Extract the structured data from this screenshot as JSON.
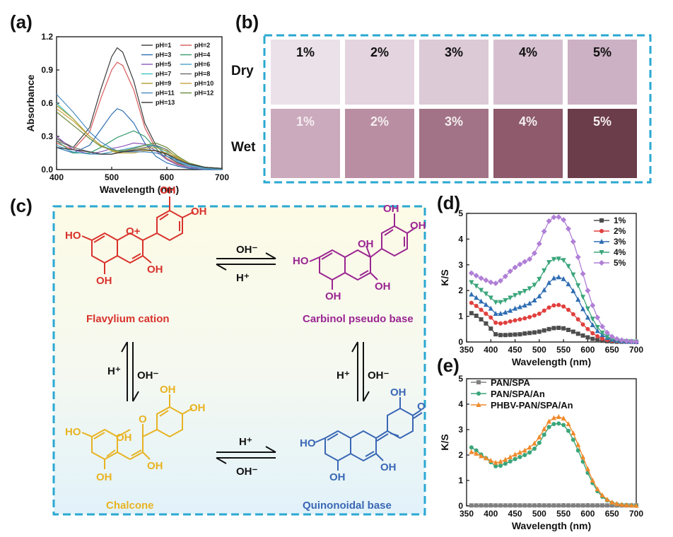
{
  "panel_labels": [
    "(a)",
    "(b)",
    "(c)",
    "(d)",
    "(e)"
  ],
  "chart_data": [
    {
      "panel": "(a)",
      "type": "line",
      "xlabel": "Wavelength (nm)",
      "ylabel": "Absorbance",
      "xlim": [
        400,
        700
      ],
      "ylim": [
        0,
        1.2
      ],
      "xticks": [
        "400",
        "500",
        "600",
        "700"
      ],
      "yticks": [
        "0.0",
        "0.3",
        "0.6",
        "0.9",
        "1.2"
      ],
      "legend_placement": "top-right",
      "colors": [
        "#3b3b3b",
        "#d95a5a",
        "#2e6fb0",
        "#3a9e6e",
        "#8e5ab8",
        "#4aa3c8",
        "#43c1c1",
        "#6b6b6b",
        "#b0a030",
        "#c9a33d",
        "#4a8ac2",
        "#6a8a3a",
        "#333333"
      ],
      "x": [
        400,
        430,
        460,
        480,
        500,
        510,
        520,
        540,
        560,
        580,
        600,
        620,
        640,
        670,
        700
      ],
      "series": [
        {
          "name": "pH=1",
          "values": [
            0.28,
            0.2,
            0.38,
            0.72,
            1.02,
            1.1,
            1.06,
            0.8,
            0.42,
            0.22,
            0.12,
            0.06,
            0.03,
            0.01,
            0.0
          ]
        },
        {
          "name": "pH=2",
          "values": [
            0.24,
            0.18,
            0.34,
            0.64,
            0.9,
            0.97,
            0.94,
            0.72,
            0.38,
            0.19,
            0.1,
            0.05,
            0.02,
            0.01,
            0.0
          ]
        },
        {
          "name": "pH=3",
          "values": [
            0.2,
            0.15,
            0.22,
            0.36,
            0.5,
            0.55,
            0.53,
            0.42,
            0.24,
            0.12,
            0.06,
            0.03,
            0.01,
            0.0,
            0.0
          ]
        },
        {
          "name": "pH=4",
          "values": [
            0.26,
            0.15,
            0.15,
            0.2,
            0.26,
            0.29,
            0.31,
            0.35,
            0.3,
            0.19,
            0.09,
            0.04,
            0.02,
            0.01,
            0.0
          ]
        },
        {
          "name": "pH=5",
          "values": [
            0.3,
            0.18,
            0.14,
            0.16,
            0.19,
            0.2,
            0.21,
            0.24,
            0.23,
            0.17,
            0.09,
            0.04,
            0.02,
            0.01,
            0.0
          ]
        },
        {
          "name": "pH=6",
          "values": [
            0.22,
            0.16,
            0.14,
            0.14,
            0.16,
            0.17,
            0.18,
            0.2,
            0.22,
            0.21,
            0.14,
            0.07,
            0.03,
            0.01,
            0.0
          ]
        },
        {
          "name": "pH=7",
          "values": [
            0.6,
            0.46,
            0.3,
            0.22,
            0.18,
            0.17,
            0.17,
            0.19,
            0.22,
            0.22,
            0.16,
            0.08,
            0.04,
            0.02,
            0.01
          ]
        },
        {
          "name": "pH=8",
          "values": [
            0.26,
            0.2,
            0.16,
            0.14,
            0.14,
            0.15,
            0.16,
            0.18,
            0.2,
            0.22,
            0.18,
            0.1,
            0.05,
            0.02,
            0.01
          ]
        },
        {
          "name": "pH=9",
          "values": [
            0.58,
            0.46,
            0.3,
            0.22,
            0.17,
            0.16,
            0.16,
            0.17,
            0.19,
            0.2,
            0.17,
            0.11,
            0.05,
            0.02,
            0.01
          ]
        },
        {
          "name": "pH=10",
          "values": [
            0.55,
            0.44,
            0.3,
            0.22,
            0.17,
            0.15,
            0.15,
            0.15,
            0.17,
            0.17,
            0.15,
            0.1,
            0.05,
            0.02,
            0.01
          ]
        },
        {
          "name": "pH=11",
          "values": [
            0.68,
            0.52,
            0.34,
            0.25,
            0.19,
            0.17,
            0.16,
            0.16,
            0.16,
            0.15,
            0.12,
            0.08,
            0.04,
            0.02,
            0.01
          ]
        },
        {
          "name": "pH=12",
          "values": [
            0.52,
            0.4,
            0.28,
            0.21,
            0.18,
            0.17,
            0.17,
            0.19,
            0.22,
            0.24,
            0.2,
            0.12,
            0.06,
            0.02,
            0.01
          ]
        },
        {
          "name": "pH=13",
          "values": [
            0.2,
            0.18,
            0.16,
            0.14,
            0.14,
            0.15,
            0.16,
            0.17,
            0.18,
            0.17,
            0.14,
            0.09,
            0.05,
            0.02,
            0.01
          ]
        }
      ]
    },
    {
      "panel": "(d)",
      "type": "line",
      "xlabel": "Wavelength (nm)",
      "ylabel": "K/S",
      "xlim": [
        350,
        700
      ],
      "ylim": [
        0,
        5
      ],
      "xticks": [
        "350",
        "400",
        "450",
        "500",
        "550",
        "600",
        "650",
        "700"
      ],
      "yticks": [
        "0",
        "1",
        "2",
        "3",
        "4",
        "5"
      ],
      "legend_placement": "top-right",
      "colors": [
        "#4d4d4d",
        "#e0403e",
        "#2f6db3",
        "#3aa57a",
        "#b07fd6"
      ],
      "markers": [
        "square",
        "circle",
        "triangle-up",
        "triangle-down",
        "diamond"
      ],
      "x": [
        360,
        370,
        380,
        390,
        400,
        410,
        420,
        430,
        440,
        450,
        460,
        470,
        480,
        490,
        500,
        510,
        520,
        530,
        540,
        550,
        560,
        570,
        580,
        590,
        600,
        610,
        620,
        630,
        640,
        650,
        660,
        670,
        680,
        690,
        700
      ],
      "series": [
        {
          "name": "1%",
          "values": [
            1.12,
            1.02,
            0.88,
            0.72,
            0.52,
            0.3,
            0.27,
            0.27,
            0.28,
            0.29,
            0.3,
            0.33,
            0.35,
            0.37,
            0.4,
            0.45,
            0.5,
            0.54,
            0.55,
            0.53,
            0.47,
            0.4,
            0.32,
            0.25,
            0.18,
            0.12,
            0.08,
            0.05,
            0.03,
            0.02,
            0.01,
            0.01,
            0.01,
            0.01,
            0.0
          ]
        },
        {
          "name": "2%",
          "values": [
            1.52,
            1.4,
            1.25,
            1.1,
            0.95,
            0.75,
            0.72,
            0.75,
            0.8,
            0.84,
            0.88,
            0.92,
            0.97,
            1.03,
            1.1,
            1.22,
            1.34,
            1.42,
            1.44,
            1.38,
            1.25,
            1.08,
            0.88,
            0.68,
            0.5,
            0.34,
            0.22,
            0.13,
            0.08,
            0.05,
            0.03,
            0.02,
            0.02,
            0.01,
            0.01
          ]
        },
        {
          "name": "3%",
          "values": [
            1.85,
            1.72,
            1.58,
            1.45,
            1.3,
            1.1,
            1.1,
            1.15,
            1.22,
            1.3,
            1.36,
            1.42,
            1.5,
            1.62,
            1.78,
            2.02,
            2.3,
            2.48,
            2.52,
            2.45,
            2.25,
            1.98,
            1.65,
            1.28,
            0.95,
            0.66,
            0.43,
            0.27,
            0.16,
            0.09,
            0.05,
            0.03,
            0.02,
            0.01,
            0.01
          ]
        },
        {
          "name": "4%",
          "values": [
            2.32,
            2.18,
            2.02,
            1.88,
            1.72,
            1.55,
            1.55,
            1.62,
            1.72,
            1.82,
            1.9,
            1.98,
            2.08,
            2.22,
            2.45,
            2.78,
            3.1,
            3.22,
            3.24,
            3.18,
            2.95,
            2.62,
            2.2,
            1.75,
            1.3,
            0.9,
            0.58,
            0.36,
            0.21,
            0.12,
            0.07,
            0.04,
            0.03,
            0.02,
            0.01
          ]
        },
        {
          "name": "5%",
          "values": [
            2.68,
            2.58,
            2.48,
            2.4,
            2.32,
            2.28,
            2.38,
            2.55,
            2.75,
            2.9,
            3.02,
            3.12,
            3.22,
            3.45,
            3.82,
            4.3,
            4.7,
            4.85,
            4.86,
            4.75,
            4.4,
            3.9,
            3.3,
            2.65,
            2.0,
            1.42,
            0.95,
            0.6,
            0.36,
            0.21,
            0.12,
            0.07,
            0.04,
            0.02,
            0.01
          ]
        }
      ]
    },
    {
      "panel": "(e)",
      "type": "line",
      "xlabel": "Wavelength (nm)",
      "ylabel": "K/S",
      "xlim": [
        350,
        700
      ],
      "ylim": [
        0,
        5
      ],
      "xticks": [
        "350",
        "400",
        "450",
        "500",
        "550",
        "600",
        "650",
        "700"
      ],
      "yticks": [
        "0",
        "1",
        "2",
        "3",
        "4",
        "5"
      ],
      "legend_placement": "top-left",
      "colors": [
        "#808080",
        "#3aa57a",
        "#ef8a2c"
      ],
      "markers": [
        "square",
        "circle",
        "triangle-up"
      ],
      "x": [
        360,
        370,
        380,
        390,
        400,
        410,
        420,
        430,
        440,
        450,
        460,
        470,
        480,
        490,
        500,
        510,
        520,
        530,
        540,
        550,
        560,
        570,
        580,
        590,
        600,
        610,
        620,
        630,
        640,
        650,
        660,
        670,
        680,
        690,
        700
      ],
      "series": [
        {
          "name": "PAN/SPA",
          "values": [
            0.02,
            0.02,
            0.02,
            0.02,
            0.02,
            0.02,
            0.02,
            0.02,
            0.02,
            0.02,
            0.02,
            0.02,
            0.02,
            0.02,
            0.02,
            0.02,
            0.02,
            0.02,
            0.02,
            0.02,
            0.02,
            0.02,
            0.02,
            0.02,
            0.02,
            0.02,
            0.02,
            0.02,
            0.02,
            0.02,
            0.02,
            0.02,
            0.02,
            0.02,
            0.02
          ]
        },
        {
          "name": "PAN/SPA/An",
          "values": [
            2.3,
            2.18,
            2.02,
            1.88,
            1.72,
            1.56,
            1.58,
            1.66,
            1.75,
            1.84,
            1.92,
            2.0,
            2.1,
            2.25,
            2.48,
            2.8,
            3.1,
            3.22,
            3.24,
            3.18,
            2.95,
            2.6,
            2.18,
            1.74,
            1.3,
            0.9,
            0.58,
            0.36,
            0.22,
            0.12,
            0.07,
            0.04,
            0.03,
            0.02,
            0.01
          ]
        },
        {
          "name": "PHBV-PAN/SPA/An",
          "values": [
            2.12,
            2.06,
            1.96,
            1.88,
            1.78,
            1.7,
            1.74,
            1.82,
            1.92,
            2.02,
            2.1,
            2.18,
            2.3,
            2.46,
            2.7,
            3.02,
            3.32,
            3.46,
            3.5,
            3.44,
            3.22,
            2.86,
            2.4,
            1.92,
            1.45,
            1.0,
            0.66,
            0.42,
            0.25,
            0.14,
            0.08,
            0.05,
            0.03,
            0.02,
            0.01
          ]
        }
      ]
    }
  ],
  "swatches": {
    "row_labels": [
      "Dry",
      "Wet"
    ],
    "columns": [
      "1%",
      "2%",
      "3%",
      "4%",
      "5%"
    ],
    "dry_colors": [
      "#ebe1e9",
      "#e4d4df",
      "#dccad7",
      "#d6c0cf",
      "#ccb0c3"
    ],
    "wet_colors": [
      "#cbaabd",
      "#b98ea2",
      "#a27386",
      "#8e5a6c",
      "#6b3c49"
    ],
    "dry_text_color": "#111111",
    "wet_text_color": "#f4eef0"
  },
  "scheme": {
    "flavylium": {
      "caption": "Flavylium cation",
      "color": "#d9322c"
    },
    "carbinol": {
      "caption": "Carbinol pseudo base",
      "color": "#9a2592"
    },
    "chalcone": {
      "caption": "Chalcone",
      "color": "#e8b322"
    },
    "quinonoidal": {
      "caption": "Quinonoidal base",
      "color": "#3a67b5"
    },
    "atoms": {
      "oh": "OH",
      "ho": "HO",
      "o": "O",
      "o_plus": "O+"
    },
    "arrow_labels": {
      "top_fwd": "OH⁻",
      "top_back": "H⁺",
      "left_up": "H⁺",
      "left_down": "OH⁻",
      "right_up": "H⁺",
      "right_down": "OH⁻",
      "bottom_fwd": "H⁺",
      "bottom_back": "OH⁻"
    }
  }
}
